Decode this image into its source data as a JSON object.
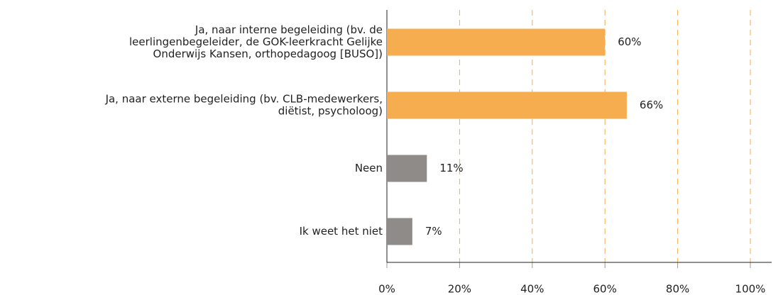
{
  "chart_data": {
    "type": "bar",
    "orientation": "horizontal",
    "categories": [
      [
        "Ja, naar interne begeleiding (bv. de",
        "leerlingenbegeleider, de GOK-leerkracht Gelijke",
        "Onderwijs Kansen, orthopedagoog [BUSO])"
      ],
      [
        "Ja, naar externe begeleiding (bv. CLB-medewerkers,",
        "diëtist, psycholoog)"
      ],
      [
        "Neen"
      ],
      [
        "Ik weet het niet"
      ]
    ],
    "values": [
      60,
      66,
      11,
      7
    ],
    "value_labels": [
      "60%",
      "66%",
      "11%",
      "7%"
    ],
    "colors": [
      "#f5ad4f",
      "#f5ad4f",
      "#8f8b89",
      "#8f8b89"
    ],
    "xlim": [
      0,
      100
    ],
    "xticks": [
      {
        "value": 0,
        "label": "0%"
      },
      {
        "value": 20,
        "label": "20%"
      },
      {
        "value": 40,
        "label": "40%"
      },
      {
        "value": 60,
        "label": "60%"
      },
      {
        "value": 80,
        "label": "80%"
      },
      {
        "value": 100,
        "label": "100%"
      }
    ],
    "grid": true,
    "grid_color": "#f5ad4f"
  }
}
